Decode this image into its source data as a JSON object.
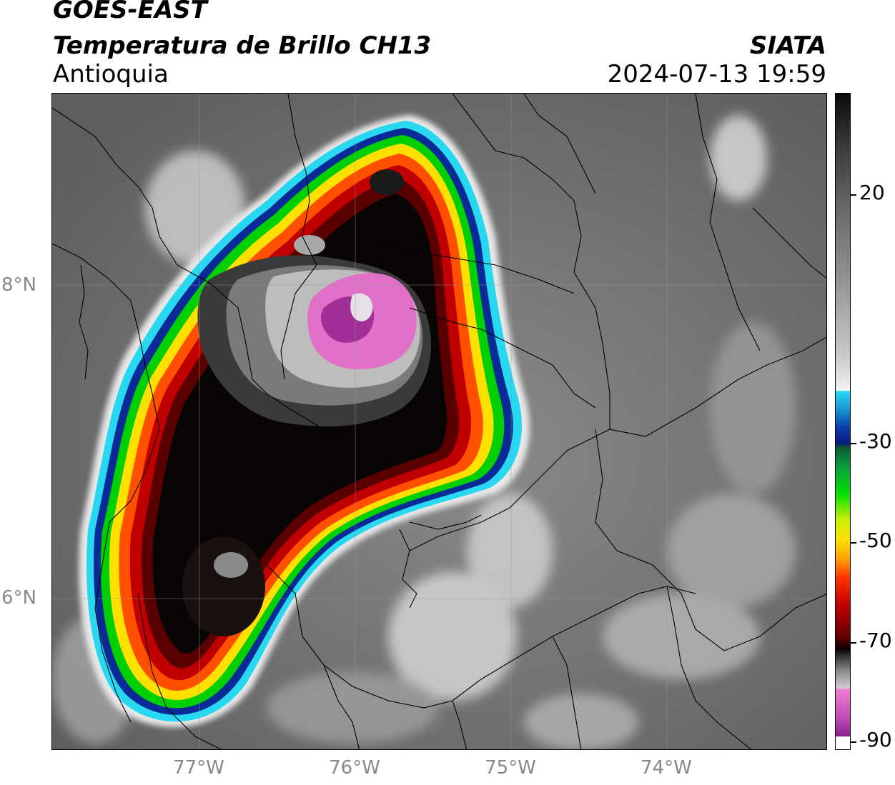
{
  "header": {
    "satellite": "GOES-EAST",
    "product": "Temperatura de Brillo CH13",
    "region": "Antioquia",
    "organization": "SIATA",
    "timestamp": "2024-07-13 19:59"
  },
  "axes": {
    "latitude_labels": [
      "8°N",
      "6°N"
    ],
    "longitude_labels": [
      "77°W",
      "76°W",
      "75°W",
      "74°W"
    ]
  },
  "colorbar": {
    "tick_labels": [
      "20",
      "-30",
      "-50",
      "-70",
      "-90"
    ],
    "colors": {
      "warm_gray": "#6f6f6f",
      "cyan": "#28d8f0",
      "blue": "#0a1a80",
      "green": "#00e000",
      "yellow": "#ffe000",
      "red": "#c00000",
      "black": "#0a0000",
      "magenta": "#f07ad0",
      "purple": "#8a2090"
    }
  }
}
